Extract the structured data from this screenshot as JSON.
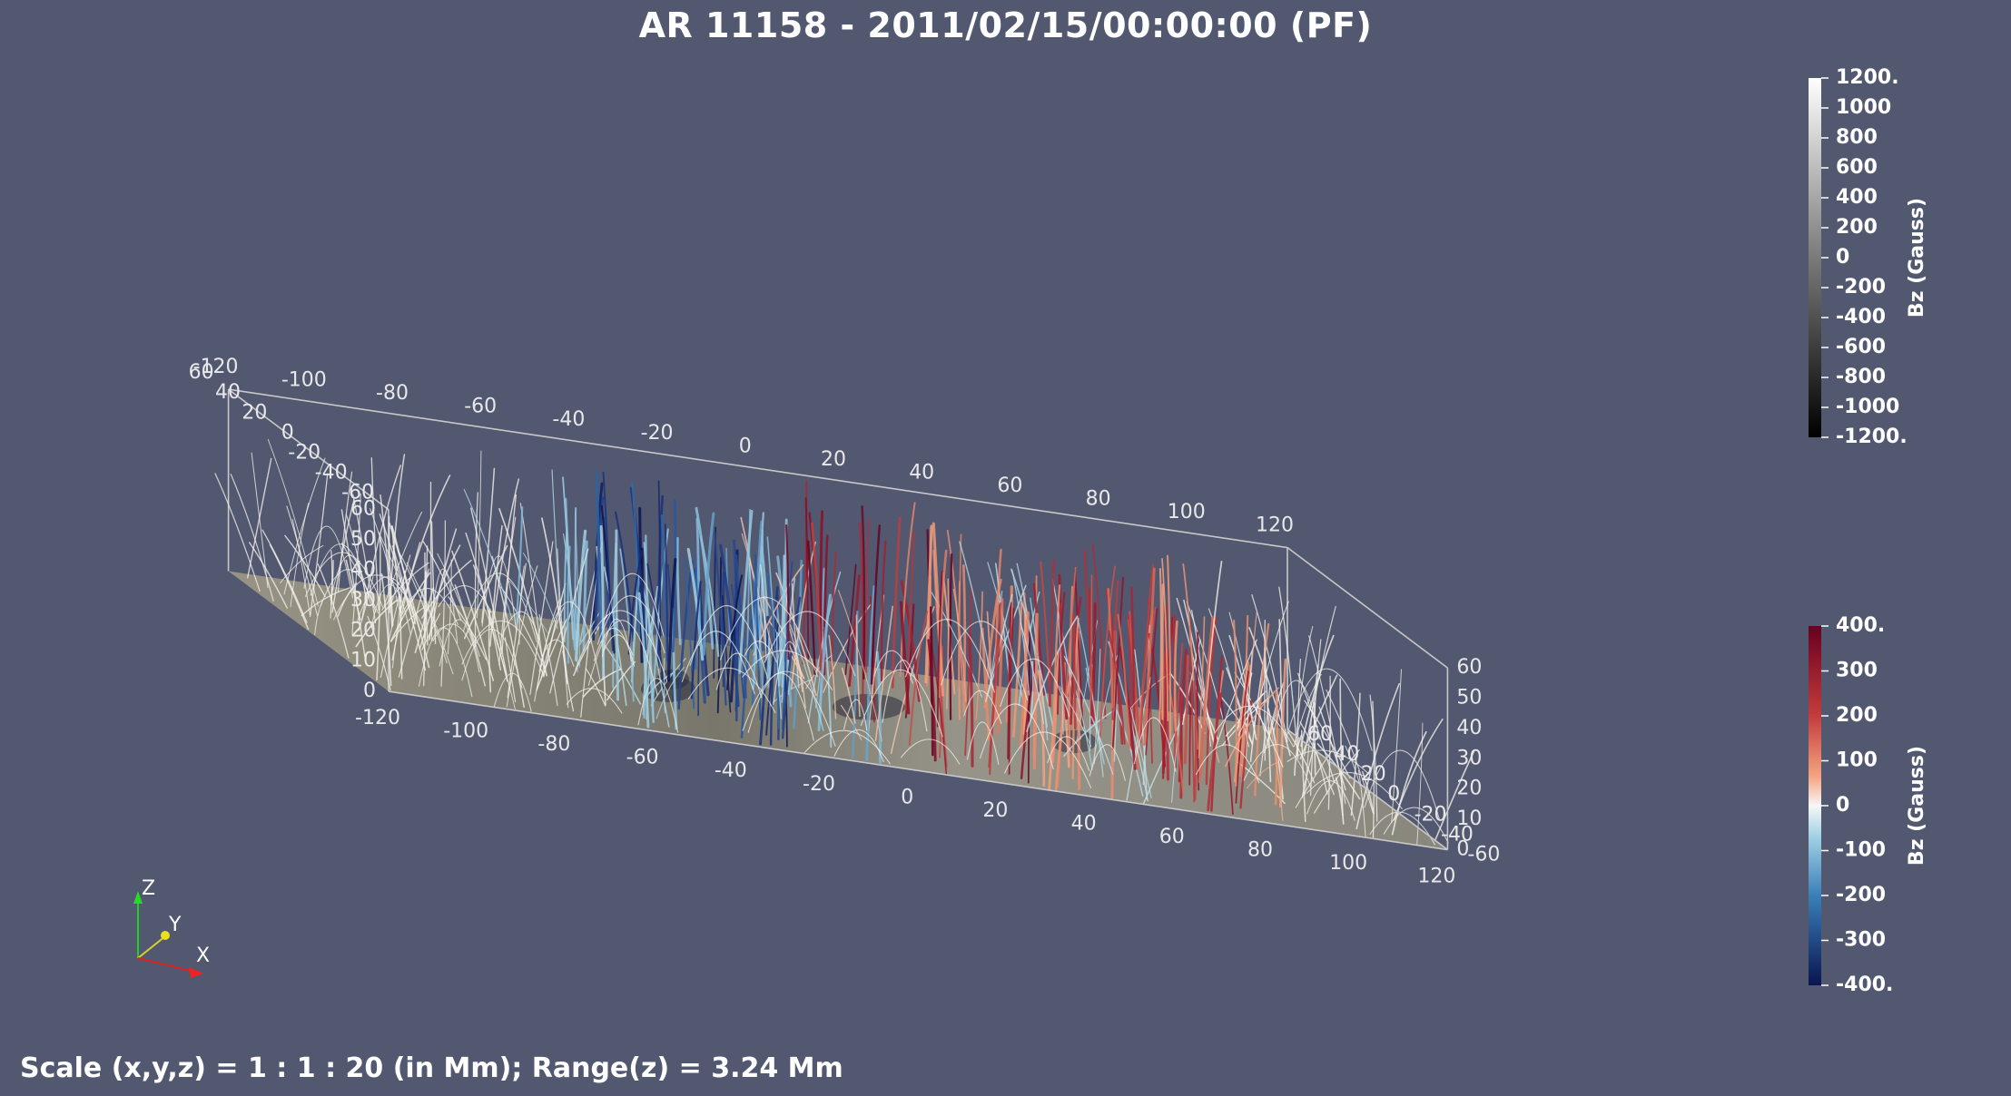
{
  "title": "AR 11158 - 2011/02/15/00:00:00 (PF)",
  "footer": "Scale (x,y,z) = 1 : 1 : 20 (in Mm); Range(z) = 3.24 Mm",
  "colors": {
    "background": "#525870",
    "text": "#ffffff",
    "axis_line": "#c8c8c8",
    "floor": "#8a8778",
    "negative_strong": "#15205e",
    "negative_weak": "#8ec6dc",
    "positive_weak": "#f0b898",
    "positive_strong": "#6a0d22",
    "neutral_line": "#f2f0e8"
  },
  "chart_data": {
    "type": "3d-field-line-plot",
    "title": "AR 11158 - 2011/02/15/00:00:00 (PF)",
    "axes": {
      "x": {
        "range": [
          -120,
          120
        ],
        "ticks": [
          "-120",
          "-100",
          "-80",
          "-60",
          "-40",
          "-20",
          "0",
          "20",
          "40",
          "60",
          "80",
          "100",
          "120"
        ]
      },
      "y": {
        "range": [
          -60,
          60
        ],
        "front_ticks": [
          "-60",
          "-40",
          "-20",
          "0",
          "20",
          "40",
          "60"
        ],
        "back_ticks": [
          "-60",
          "-40",
          "-20",
          "0",
          "20",
          "40",
          "60"
        ]
      },
      "z": {
        "range": [
          0,
          60
        ],
        "ticks": [
          "0",
          "10",
          "20",
          "30",
          "40",
          "50",
          "60"
        ]
      }
    },
    "colorbars": [
      {
        "label": "Bz (Gauss)",
        "range": [
          -1200,
          1200
        ],
        "colormap": "grayscale",
        "ticks": [
          "1200.",
          "1000",
          "800",
          "600",
          "400",
          "200",
          "0",
          "-200",
          "-400",
          "-600",
          "-800",
          "-1000",
          "-1200."
        ]
      },
      {
        "label": "Bz (Gauss)",
        "range": [
          -400,
          400
        ],
        "colormap": "cool-warm",
        "ticks": [
          "400.",
          "300",
          "200",
          "100",
          "0",
          "-100",
          "-200",
          "-300",
          "-400."
        ]
      }
    ],
    "polarity_regions": [
      {
        "x_range": [
          -120,
          -60
        ],
        "bz": 0
      },
      {
        "x_range": [
          -60,
          -45
        ],
        "bz": -120
      },
      {
        "x_range": [
          -45,
          -20
        ],
        "bz": -380
      },
      {
        "x_range": [
          -20,
          -5
        ],
        "bz": -150
      },
      {
        "x_range": [
          -5,
          5
        ],
        "bz": 60
      },
      {
        "x_range": [
          5,
          30
        ],
        "bz": 380
      },
      {
        "x_range": [
          30,
          45
        ],
        "bz": 150
      },
      {
        "x_range": [
          45,
          60
        ],
        "bz": -80
      },
      {
        "x_range": [
          60,
          80
        ],
        "bz": 300
      },
      {
        "x_range": [
          80,
          90
        ],
        "bz": 130
      },
      {
        "x_range": [
          90,
          120
        ],
        "bz": 0
      }
    ],
    "orientation_axes": [
      "Z",
      "Y",
      "X"
    ],
    "footer": "Scale (x,y,z) = 1 : 1 : 20 (in Mm); Range(z) = 3.24 Mm"
  }
}
